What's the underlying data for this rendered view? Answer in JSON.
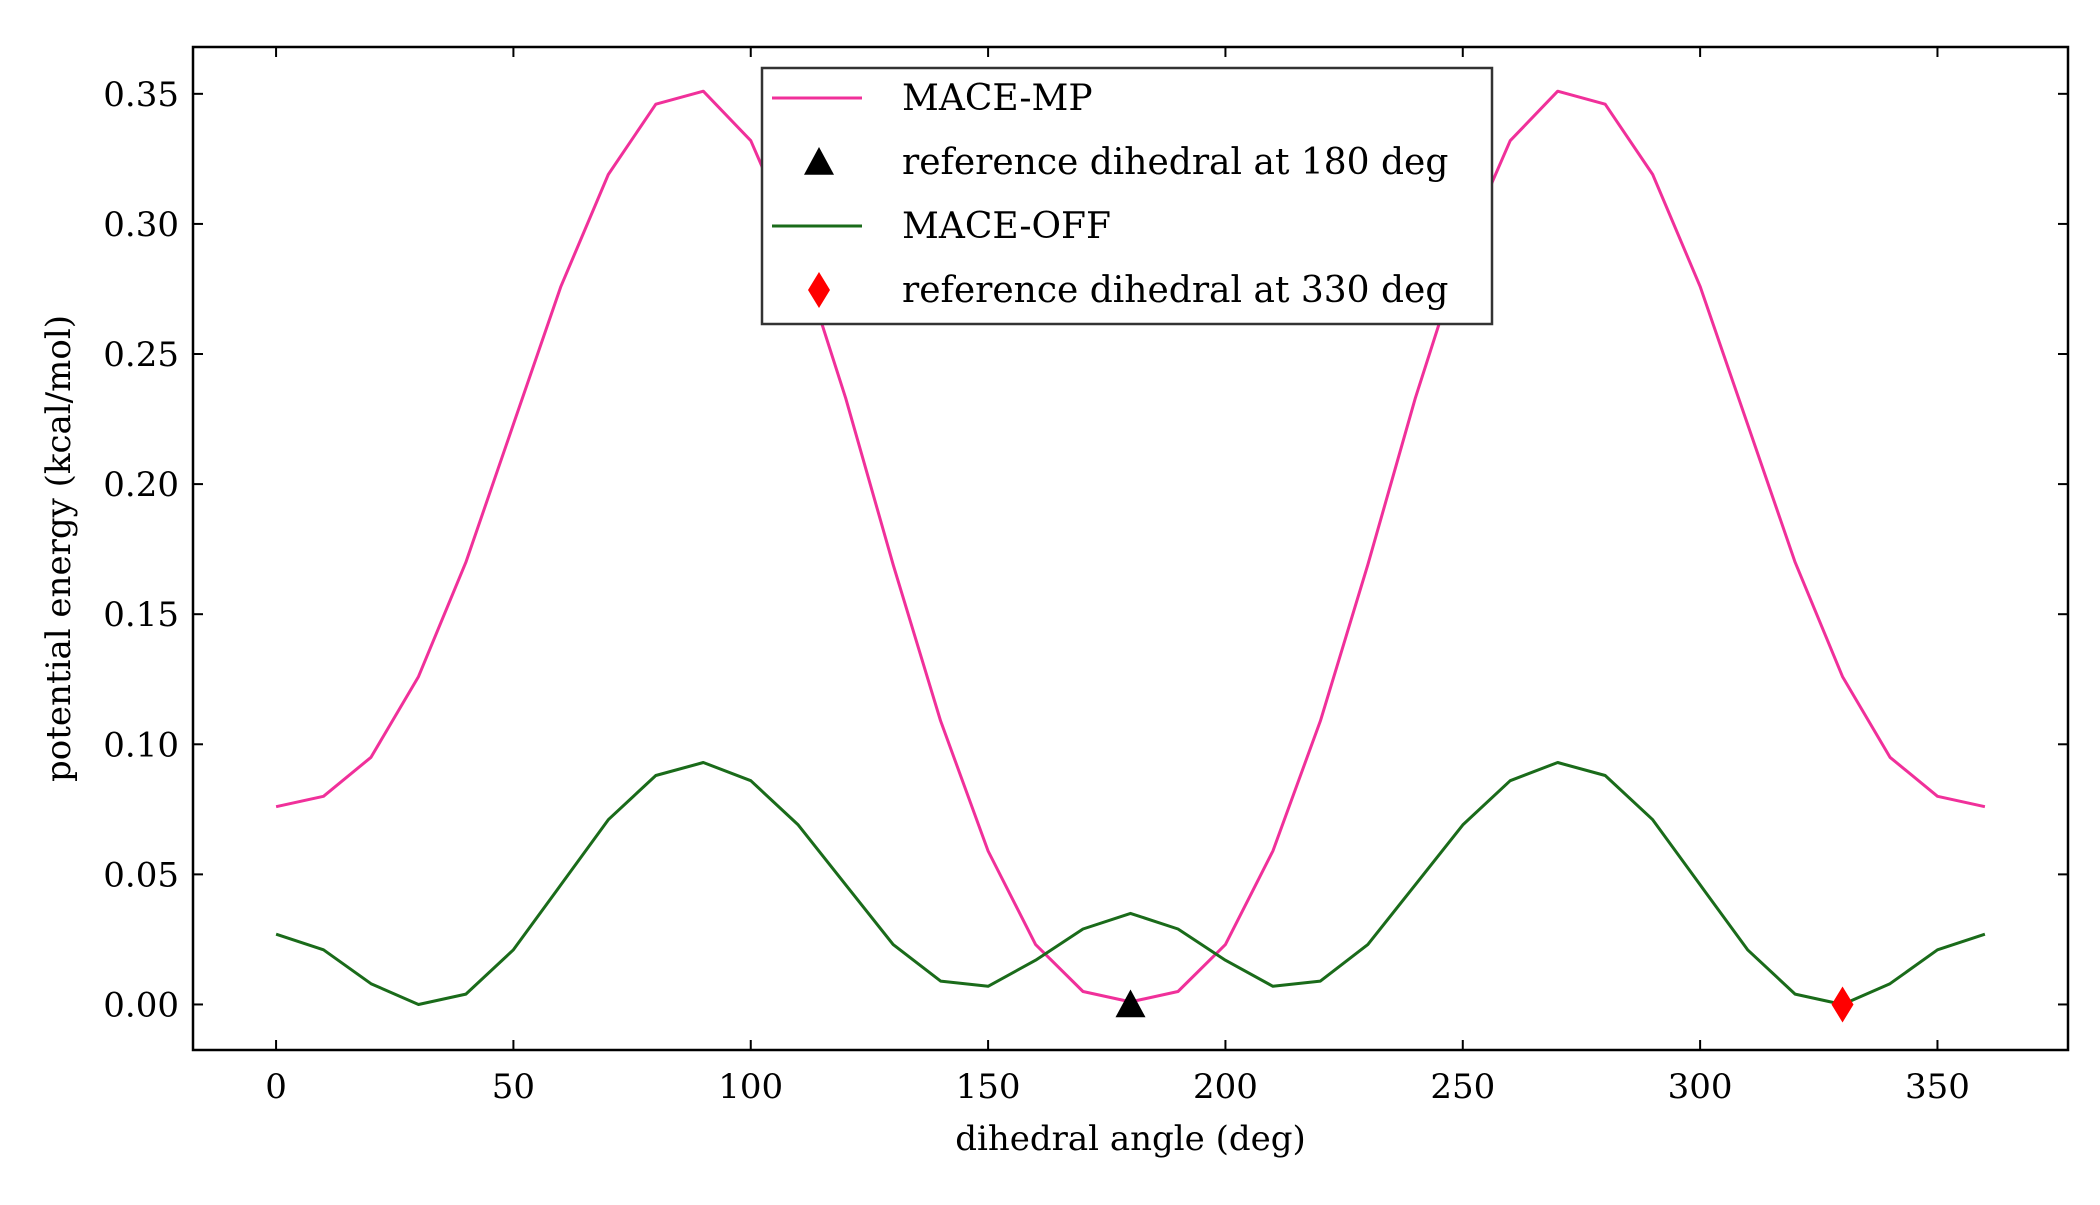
{
  "chart_data": {
    "type": "line",
    "title": "",
    "xlabel": "dihedral angle (deg)",
    "ylabel": "potential energy (kcal/mol)",
    "xlim": [
      -17.5,
      377.5
    ],
    "ylim": [
      -0.0175,
      0.368
    ],
    "xticks": [
      0,
      50,
      100,
      150,
      200,
      250,
      300,
      350
    ],
    "yticks": [
      0.0,
      0.05,
      0.1,
      0.15,
      0.2,
      0.25,
      0.3,
      0.35
    ],
    "xtick_labels": [
      "0",
      "50",
      "100",
      "150",
      "200",
      "250",
      "300",
      "350"
    ],
    "ytick_labels": [
      "0.00",
      "0.05",
      "0.10",
      "0.15",
      "0.20",
      "0.25",
      "0.30",
      "0.35"
    ],
    "grid": false,
    "legend_position": "top-center",
    "x": [
      0,
      10,
      20,
      30,
      40,
      50,
      60,
      70,
      80,
      90,
      100,
      110,
      120,
      130,
      140,
      150,
      160,
      170,
      180,
      190,
      200,
      210,
      220,
      230,
      240,
      250,
      260,
      270,
      280,
      290,
      300,
      310,
      320,
      330,
      340,
      350,
      360
    ],
    "series": [
      {
        "name": "MACE-MP",
        "color": "#f0309a",
        "kind": "line",
        "values": [
          0.076,
          0.08,
          0.095,
          0.126,
          0.17,
          0.223,
          0.276,
          0.319,
          0.346,
          0.351,
          0.332,
          0.29,
          0.233,
          0.169,
          0.109,
          0.059,
          0.023,
          0.005,
          0.001,
          0.005,
          0.023,
          0.059,
          0.109,
          0.169,
          0.233,
          0.29,
          0.332,
          0.351,
          0.346,
          0.319,
          0.276,
          0.223,
          0.17,
          0.126,
          0.095,
          0.08,
          0.076
        ]
      },
      {
        "name": "reference dihedral at 180 deg",
        "color": "#000000",
        "kind": "marker",
        "marker": "triangle",
        "points": [
          {
            "x": 180,
            "y": 0.0
          }
        ]
      },
      {
        "name": "MACE-OFF",
        "color": "#1a6b1a",
        "kind": "line",
        "values": [
          0.027,
          0.021,
          0.008,
          0.0,
          0.004,
          0.021,
          0.046,
          0.071,
          0.088,
          0.093,
          0.086,
          0.069,
          0.046,
          0.023,
          0.009,
          0.007,
          0.017,
          0.029,
          0.035,
          0.029,
          0.017,
          0.007,
          0.009,
          0.023,
          0.046,
          0.069,
          0.086,
          0.093,
          0.088,
          0.071,
          0.046,
          0.021,
          0.004,
          0.0,
          0.008,
          0.021,
          0.027
        ]
      },
      {
        "name": "reference dihedral at 330 deg",
        "color": "#ff0000",
        "kind": "marker",
        "marker": "diamond",
        "points": [
          {
            "x": 330,
            "y": 0.0
          }
        ]
      }
    ]
  }
}
